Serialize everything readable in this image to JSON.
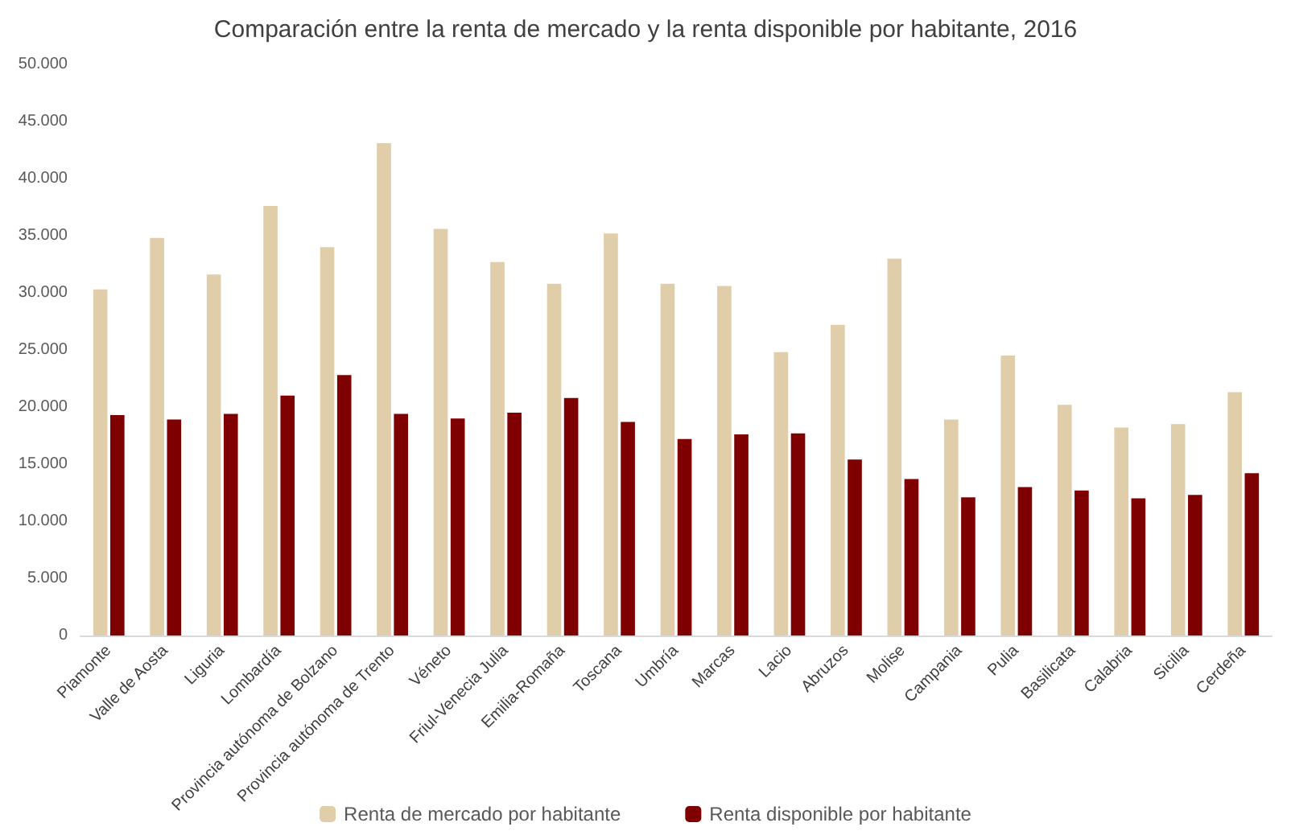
{
  "chart_data": {
    "type": "bar",
    "title": "Comparación entre la renta de mercado y la renta disponible por habitante, 2016",
    "categories": [
      "Piamonte",
      "Valle de Aosta",
      "Liguria",
      "Lombardía",
      "Provincia autónoma de Bolzano",
      "Provincia autónoma de Trento",
      "Véneto",
      "Friul-Venecia Julia",
      "Emilia-Romaña",
      "Toscana",
      "Umbría",
      "Marcas",
      "Lacio",
      "Abruzos",
      "Molise",
      "Campania",
      "Pulia",
      "Basilicata",
      "Calabria",
      "Sicilia",
      "Cerdeña"
    ],
    "series": [
      {
        "name": "Renta de mercado por habitante",
        "color": "#e0cda9",
        "values": [
          30300,
          34800,
          31600,
          37600,
          34000,
          43100,
          35600,
          32700,
          30800,
          35200,
          30800,
          30600,
          24800,
          27200,
          33000,
          18900,
          24500,
          20200,
          18200,
          18500,
          21300
        ]
      },
      {
        "name": "Renta disponible por habitante",
        "color": "#7f0000",
        "values": [
          19300,
          18900,
          19400,
          21000,
          22800,
          19400,
          19000,
          19500,
          20800,
          18700,
          17200,
          17600,
          17700,
          15400,
          13700,
          12100,
          13000,
          12700,
          12000,
          12300,
          14200
        ]
      }
    ],
    "ylim": [
      0,
      50000
    ],
    "yticks": [
      {
        "value": 0,
        "label": "0"
      },
      {
        "value": 5000,
        "label": "5.000"
      },
      {
        "value": 10000,
        "label": "10.000"
      },
      {
        "value": 15000,
        "label": "15.000"
      },
      {
        "value": 20000,
        "label": "20.000"
      },
      {
        "value": 25000,
        "label": "25.000"
      },
      {
        "value": 30000,
        "label": "30.000"
      },
      {
        "value": 35000,
        "label": "35.000"
      },
      {
        "value": 40000,
        "label": "40.000"
      },
      {
        "value": 45000,
        "label": "45.000"
      },
      {
        "value": 50000,
        "label": "50.000"
      }
    ],
    "grid": false,
    "legend": "bottom"
  }
}
